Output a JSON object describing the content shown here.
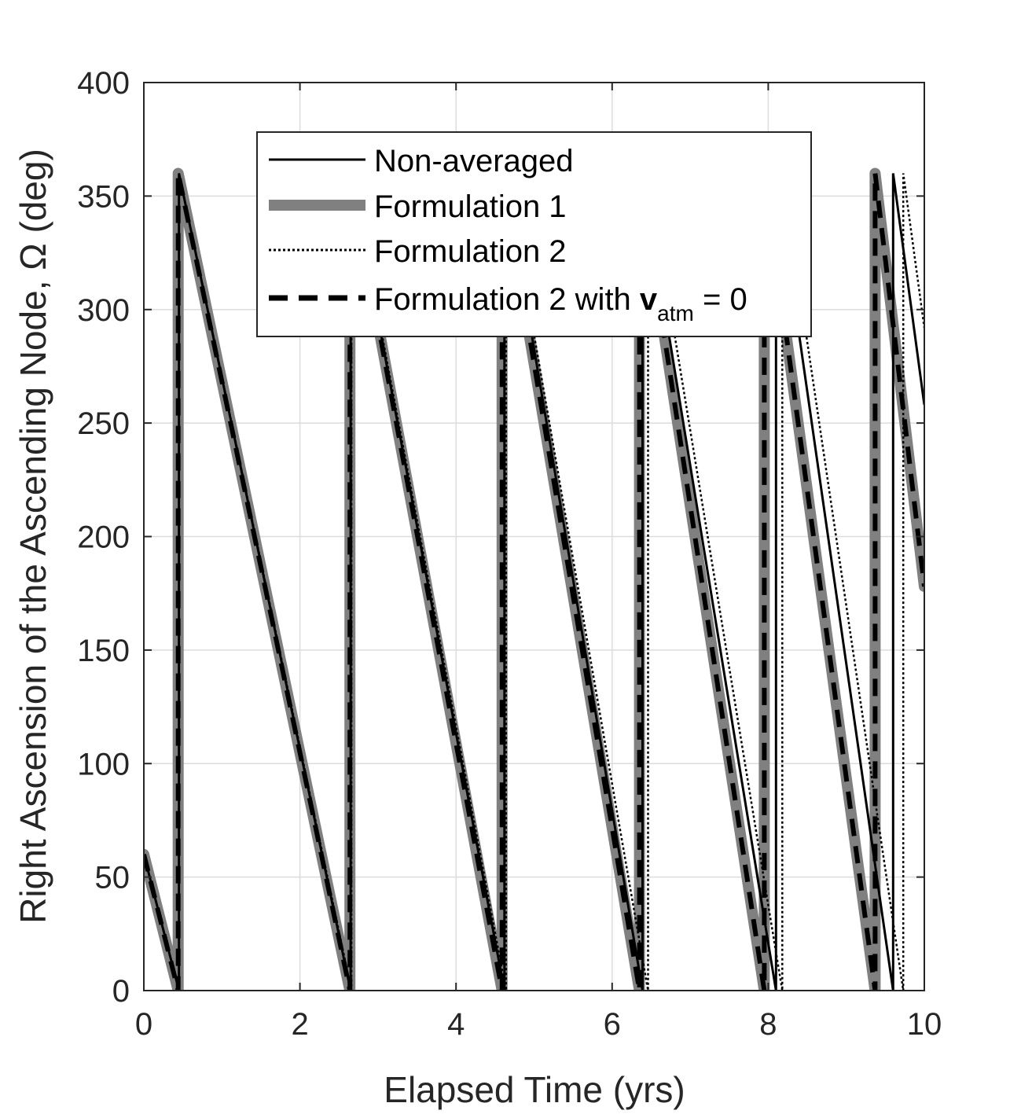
{
  "chart_data": {
    "type": "line",
    "title": "",
    "xlabel": "Elapsed Time (yrs)",
    "ylabel": "Right Ascension of the Ascending Node, Ω (deg)",
    "xlim": [
      0,
      10
    ],
    "ylim": [
      0,
      400
    ],
    "xticks": [
      0,
      2,
      4,
      6,
      8,
      10
    ],
    "yticks": [
      0,
      50,
      100,
      150,
      200,
      250,
      300,
      350,
      400
    ],
    "xtick_labels": [
      "0",
      "2",
      "4",
      "6",
      "8",
      "10"
    ],
    "ytick_labels": [
      "0",
      "50",
      "100",
      "150",
      "200",
      "250",
      "300",
      "350",
      "400"
    ],
    "grid": true,
    "legend_position": "top-center",
    "series": [
      {
        "name": "Non-averaged",
        "style": "solid-thin",
        "color": "#000000",
        "points": [
          [
            0,
            60
          ],
          [
            0.45,
            0
          ],
          [
            0.45,
            360
          ],
          [
            2.65,
            0
          ],
          [
            2.65,
            360
          ],
          [
            4.62,
            0
          ],
          [
            4.62,
            360
          ],
          [
            6.39,
            0
          ],
          [
            6.39,
            360
          ],
          [
            8.1,
            0
          ],
          [
            8.1,
            360
          ],
          [
            9.6,
            0
          ],
          [
            9.6,
            360
          ],
          [
            10,
            258
          ]
        ]
      },
      {
        "name": "Formulation 1",
        "style": "thick-gray",
        "color": "#808080",
        "points": [
          [
            0,
            60
          ],
          [
            0.44,
            0
          ],
          [
            0.44,
            360
          ],
          [
            2.64,
            0
          ],
          [
            2.64,
            360
          ],
          [
            4.59,
            0
          ],
          [
            4.59,
            360
          ],
          [
            6.35,
            0
          ],
          [
            6.35,
            360
          ],
          [
            7.95,
            0
          ],
          [
            7.95,
            360
          ],
          [
            9.37,
            0
          ],
          [
            9.37,
            360
          ],
          [
            10,
            178
          ]
        ]
      },
      {
        "name": "Formulation 2",
        "style": "dotted",
        "color": "#000000",
        "points": [
          [
            0,
            60
          ],
          [
            0.45,
            0
          ],
          [
            0.45,
            360
          ],
          [
            2.66,
            0
          ],
          [
            2.66,
            360
          ],
          [
            4.64,
            0
          ],
          [
            4.64,
            360
          ],
          [
            6.46,
            0
          ],
          [
            6.46,
            360
          ],
          [
            8.18,
            0
          ],
          [
            8.18,
            360
          ],
          [
            9.73,
            0
          ],
          [
            9.73,
            360
          ],
          [
            10,
            292
          ]
        ]
      },
      {
        "name": "Formulation 2 with v_atm = 0",
        "style": "dashed",
        "color": "#000000",
        "points": [
          [
            0,
            60
          ],
          [
            0.44,
            0
          ],
          [
            0.44,
            360
          ],
          [
            2.64,
            0
          ],
          [
            2.64,
            360
          ],
          [
            4.59,
            0
          ],
          [
            4.59,
            360
          ],
          [
            6.35,
            0
          ],
          [
            6.35,
            360
          ],
          [
            7.95,
            0
          ],
          [
            7.95,
            360
          ],
          [
            9.37,
            0
          ],
          [
            9.37,
            360
          ],
          [
            10,
            178
          ]
        ]
      }
    ],
    "legend_labels": {
      "series1": "Non-averaged",
      "series2": "Formulation 1",
      "series3": "Formulation 2",
      "series4_prefix": "Formulation 2 with ",
      "series4_bold": "v",
      "series4_sub": "atm",
      "series4_suffix": " = 0"
    }
  }
}
